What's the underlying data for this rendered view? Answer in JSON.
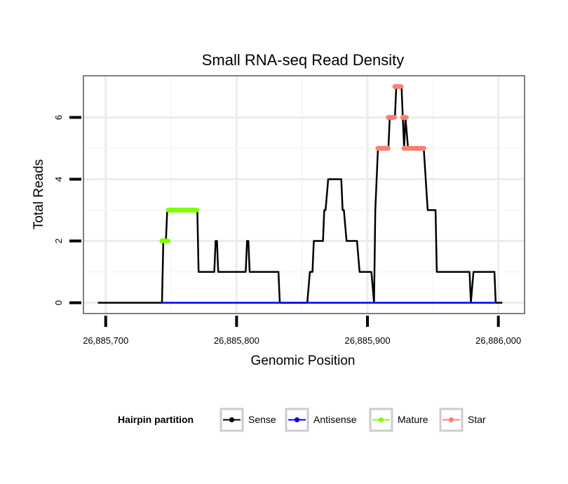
{
  "chart_data": {
    "type": "line",
    "title": "Small RNA-seq Read Density",
    "xlabel": "Genomic Position",
    "ylabel": "Total Reads",
    "xlim": [
      26885683,
      26886020
    ],
    "ylim": [
      -0.35,
      7.35
    ],
    "x_ticks": [
      {
        "value": 26885700,
        "label": "26,885,700"
      },
      {
        "value": 26885800,
        "label": "26,885,800"
      },
      {
        "value": 26885900,
        "label": "26,885,900"
      },
      {
        "value": 26886000,
        "label": "26,886,000"
      }
    ],
    "y_ticks": [
      {
        "value": 0,
        "label": "0"
      },
      {
        "value": 2,
        "label": "2"
      },
      {
        "value": 4,
        "label": "4"
      },
      {
        "value": 6,
        "label": "6"
      }
    ],
    "grid": true,
    "legend": {
      "title": "Hairpin partition",
      "position": "bottom",
      "items": [
        {
          "name": "Sense",
          "color": "#000000"
        },
        {
          "name": "Antisense",
          "color": "#0000ff"
        },
        {
          "name": "Mature",
          "color": "#7fff00"
        },
        {
          "name": "Star",
          "color": "#fa8072"
        }
      ]
    },
    "series": [
      {
        "name": "Sense",
        "color": "#000000",
        "points": [
          [
            26885694,
            0
          ],
          [
            26885743,
            0
          ],
          [
            26885744,
            2
          ],
          [
            26885746,
            2
          ],
          [
            26885747,
            3
          ],
          [
            26885770,
            3
          ],
          [
            26885771,
            1
          ],
          [
            26885783,
            1
          ],
          [
            26885784,
            2
          ],
          [
            26885785,
            2
          ],
          [
            26885786,
            1
          ],
          [
            26885807,
            1
          ],
          [
            26885808,
            2
          ],
          [
            26885809,
            2
          ],
          [
            26885810,
            1
          ],
          [
            26885832,
            1
          ],
          [
            26885833,
            0
          ],
          [
            26885854,
            0
          ],
          [
            26885856,
            1
          ],
          [
            26885858,
            1
          ],
          [
            26885859,
            2
          ],
          [
            26885866,
            2
          ],
          [
            26885867,
            3
          ],
          [
            26885868,
            3
          ],
          [
            26885870,
            4
          ],
          [
            26885880,
            4
          ],
          [
            26885881,
            3
          ],
          [
            26885882,
            3
          ],
          [
            26885884,
            2
          ],
          [
            26885892,
            2
          ],
          [
            26885894,
            1
          ],
          [
            26885903,
            1
          ],
          [
            26885905,
            0
          ],
          [
            26885906,
            3
          ],
          [
            26885908,
            5
          ],
          [
            26885916,
            5
          ],
          [
            26885917,
            6
          ],
          [
            26885921,
            6
          ],
          [
            26885922,
            7
          ],
          [
            26885926,
            7
          ],
          [
            26885927,
            6
          ],
          [
            26885928,
            5
          ],
          [
            26885929,
            6
          ],
          [
            26885931,
            5
          ],
          [
            26885943,
            5
          ],
          [
            26885946,
            3
          ],
          [
            26885952,
            3
          ],
          [
            26885953,
            1
          ],
          [
            26885978,
            1
          ],
          [
            26885979,
            0
          ],
          [
            26885981,
            1
          ],
          [
            26885997,
            1
          ],
          [
            26885998,
            0
          ],
          [
            26886003,
            0
          ]
        ]
      },
      {
        "name": "Antisense",
        "color": "#0000ff",
        "points": [
          [
            26885743,
            0
          ],
          [
            26885998,
            0
          ]
        ]
      },
      {
        "name": "Mature",
        "color": "#7fff00",
        "segments": [
          {
            "x": [
              26885743,
              26885748
            ],
            "y": 2
          },
          {
            "x": [
              26885748,
              26885770
            ],
            "y": 3
          }
        ]
      },
      {
        "name": "Star",
        "color": "#fa8072",
        "segments": [
          {
            "x": [
              26885908,
              26885916
            ],
            "y": 5
          },
          {
            "x": [
              26885916,
              26885921
            ],
            "y": 6
          },
          {
            "x": [
              26885921,
              26885926
            ],
            "y": 7
          },
          {
            "x": [
              26885927,
              26885930
            ],
            "y": 6
          },
          {
            "x": [
              26885928,
              26885943
            ],
            "y": 5
          }
        ]
      }
    ]
  }
}
